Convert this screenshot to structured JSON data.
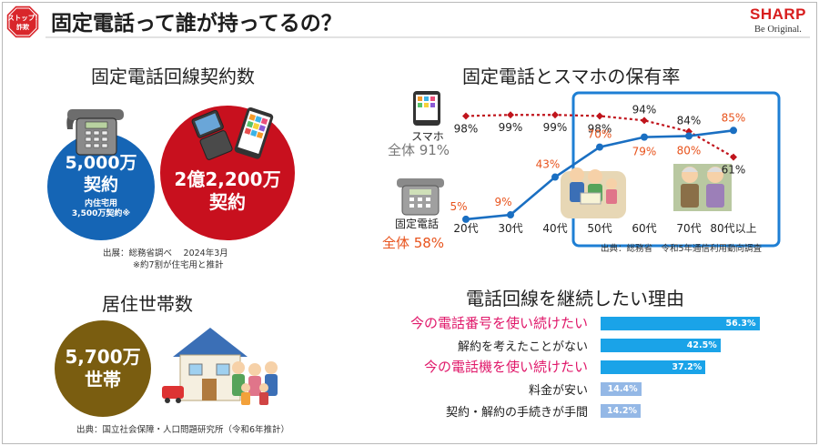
{
  "header": {
    "badge_line1": "ストップ!",
    "badge_line2": "詐欺",
    "title": "固定電話って誰が持ってるの？",
    "brand_name": "SHARP",
    "brand_tagline": "Be Original."
  },
  "landline_contracts": {
    "title": "固定電話回線契約数",
    "home_value": "5,000万",
    "home_unit": "契約",
    "home_sub1": "内住宅用",
    "home_sub2": "3,500万契約※",
    "mobile_value": "2億2,200万",
    "mobile_unit": "契約",
    "source": "出展：総務省調べ　 2024年3月",
    "footnote": "※約7割が住宅用と推計"
  },
  "households": {
    "title": "居住世帯数",
    "value": "5,700万",
    "unit": "世帯",
    "source": "出典：国立社会保障・人口問題研究所（令和6年推計）"
  },
  "ownership": {
    "title": "固定電話とスマホの保有率",
    "smartphone_label": "スマホ",
    "smartphone_total": "全体 91%",
    "landline_label": "固定電話",
    "landline_total": "全体 58%",
    "source": "出典：総務省　令和5年通信利用動向調査"
  },
  "reasons": {
    "title": "電話回線を継続したい理由"
  },
  "colors": {
    "blue": "#1565b5",
    "red_circle": "#c8101e",
    "olive": "#7a5d10",
    "smartphone_line": "#c0141c",
    "landline_line": "#1a6fc2",
    "landline_label_color": "#e8531c",
    "highlight_box": "#1e7fd4",
    "pink": "#e0186a",
    "bar_blue": "#1aa3e8",
    "bar_light": "#94b8e6"
  },
  "chart_data": [
    {
      "type": "line",
      "categories": [
        "20代",
        "30代",
        "40代",
        "50代",
        "60代",
        "70代",
        "80代以上"
      ],
      "series": [
        {
          "name": "スマホ",
          "values": [
            98,
            99,
            99,
            98,
            94,
            84,
            61
          ],
          "labels": [
            "98%",
            "99%",
            "99%",
            "98%",
            "94%",
            "84%",
            "61%"
          ]
        },
        {
          "name": "固定電話",
          "values": [
            5,
            9,
            43,
            70,
            79,
            80,
            85
          ],
          "labels": [
            "5%",
            "9%",
            "43%",
            "70%",
            "79%",
            "80%",
            "85%"
          ]
        }
      ],
      "ylim": [
        0,
        100
      ],
      "highlight_categories": [
        "50代",
        "60代",
        "70代",
        "80代以上"
      ]
    },
    {
      "type": "bar",
      "orientation": "horizontal",
      "categories": [
        "今の電話番号を使い続けたい",
        "解約を考えたことがない",
        "今の電話機を使い続けたい",
        "料金が安い",
        "契約・解約の手続きが手間"
      ],
      "values": [
        56.3,
        42.5,
        37.2,
        14.4,
        14.2
      ],
      "labels": [
        "56.3%",
        "42.5%",
        "37.2%",
        "14.4%",
        "14.2%"
      ],
      "highlighted": [
        true,
        false,
        true,
        false,
        false
      ]
    }
  ]
}
